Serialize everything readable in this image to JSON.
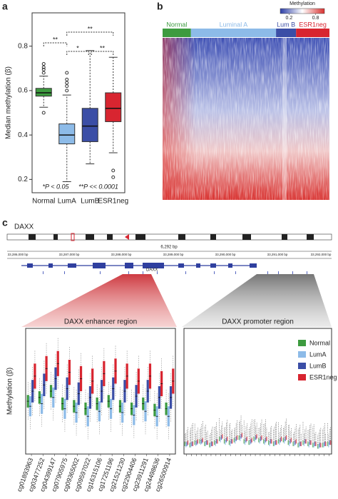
{
  "panels": {
    "a": "a",
    "b": "b",
    "c": "c"
  },
  "gene_track": {
    "name": "DAXX",
    "length": "6,292 bp",
    "gene_label": "DAXX",
    "coordinates": [
      "33,286,000 bp",
      "33,287,000 bp",
      "33,288,000 bp",
      "33,289,000 bp",
      "33,290,000 bp",
      "33,291,000 bp",
      "33,292,000 bp"
    ]
  },
  "chart_data": [
    {
      "type": "box",
      "ylabel": "Median methylation (β)",
      "categories": [
        "Normal",
        "LumA",
        "LumB",
        "ESR1neg"
      ],
      "colors": [
        "#3d9b3f",
        "#8dbbe8",
        "#3b4ea6",
        "#d82530"
      ],
      "boxes": [
        {
          "whislo": 0.525,
          "q1": 0.575,
          "med": 0.59,
          "q3": 0.61,
          "whishi": 0.665,
          "fliers": [
            0.68,
            0.695,
            0.705,
            0.72,
            0.5
          ]
        },
        {
          "whislo": 0.19,
          "q1": 0.36,
          "med": 0.4,
          "q3": 0.45,
          "whishi": 0.58,
          "fliers": [
            0.6,
            0.62,
            0.635,
            0.65,
            0.68
          ]
        },
        {
          "whislo": 0.27,
          "q1": 0.37,
          "med": 0.44,
          "q3": 0.52,
          "whishi": 0.78,
          "fliers": []
        },
        {
          "whislo": 0.32,
          "q1": 0.46,
          "med": 0.52,
          "q3": 0.59,
          "whishi": 0.75,
          "fliers": [
            0.24,
            0.21
          ]
        }
      ],
      "ylim": [
        0.14,
        0.95
      ],
      "yticks": [
        0.2,
        0.4,
        0.6,
        0.8
      ],
      "significance": [
        "**",
        "**",
        "*",
        "**"
      ],
      "footnotes": [
        "*P < 0.05",
        "**P << 0.0001"
      ]
    },
    {
      "type": "heatmap",
      "groups": [
        "Normal",
        "Luminal A",
        "Lum B",
        "ESR1neg"
      ],
      "group_colors": [
        "#3d9b3f",
        "#8dbbe8",
        "#3b4ea6",
        "#d82530"
      ],
      "colorbar_label": "Methylation",
      "colorbar_lim": [
        0,
        1
      ],
      "colorbar_ticks": [
        0.2,
        0.8
      ]
    },
    {
      "type": "grouped-box",
      "title": "DAXX enhancer region",
      "ylabel": "Methylation (β)",
      "ylim": [
        0,
        1
      ],
      "categories": [
        "cg01893963",
        "cg03477252",
        "cg04399147",
        "cg07905975",
        "cg09365002",
        "cg09597022",
        "cg16315106",
        "cg17251196",
        "cg21521230",
        "cg22904406",
        "cg23911291",
        "cg24498636",
        "cg26500914"
      ],
      "series": [
        {
          "name": "Normal",
          "color": "#3d9b3f",
          "med": [
            0.42,
            0.45,
            0.5,
            0.4,
            0.38,
            0.36,
            0.4,
            0.42,
            0.38,
            0.36,
            0.4,
            0.35,
            0.36
          ],
          "q1": [
            0.37,
            0.4,
            0.45,
            0.35,
            0.33,
            0.31,
            0.35,
            0.37,
            0.33,
            0.31,
            0.35,
            0.3,
            0.31
          ],
          "q3": [
            0.47,
            0.5,
            0.55,
            0.45,
            0.43,
            0.41,
            0.45,
            0.47,
            0.43,
            0.41,
            0.45,
            0.4,
            0.41
          ]
        },
        {
          "name": "LumA",
          "color": "#8dbbe8",
          "med": [
            0.38,
            0.4,
            0.45,
            0.36,
            0.33,
            0.3,
            0.34,
            0.36,
            0.33,
            0.31,
            0.34,
            0.3,
            0.3
          ],
          "q1": [
            0.3,
            0.32,
            0.37,
            0.28,
            0.25,
            0.22,
            0.26,
            0.28,
            0.25,
            0.23,
            0.26,
            0.22,
            0.22
          ],
          "q3": [
            0.46,
            0.48,
            0.53,
            0.44,
            0.41,
            0.38,
            0.42,
            0.44,
            0.41,
            0.39,
            0.42,
            0.38,
            0.38
          ]
        },
        {
          "name": "LumB",
          "color": "#3b4ea6",
          "med": [
            0.5,
            0.55,
            0.6,
            0.52,
            0.48,
            0.45,
            0.5,
            0.52,
            0.5,
            0.46,
            0.5,
            0.45,
            0.45
          ],
          "q1": [
            0.41,
            0.46,
            0.51,
            0.43,
            0.39,
            0.36,
            0.41,
            0.43,
            0.41,
            0.37,
            0.41,
            0.36,
            0.36
          ],
          "q3": [
            0.59,
            0.64,
            0.69,
            0.61,
            0.57,
            0.54,
            0.59,
            0.61,
            0.59,
            0.55,
            0.59,
            0.54,
            0.54
          ]
        },
        {
          "name": "ESR1neg",
          "color": "#d82530",
          "med": [
            0.62,
            0.68,
            0.72,
            0.65,
            0.6,
            0.58,
            0.64,
            0.66,
            0.62,
            0.58,
            0.62,
            0.56,
            0.58
          ],
          "q1": [
            0.52,
            0.58,
            0.62,
            0.55,
            0.5,
            0.48,
            0.54,
            0.56,
            0.52,
            0.48,
            0.52,
            0.46,
            0.48
          ],
          "q3": [
            0.72,
            0.78,
            0.82,
            0.75,
            0.7,
            0.68,
            0.74,
            0.76,
            0.72,
            0.68,
            0.72,
            0.66,
            0.68
          ]
        }
      ]
    },
    {
      "type": "grouped-box",
      "title": "DAXX promoter region",
      "ylim": [
        0,
        1
      ],
      "legend": "upper right",
      "categories": [
        null,
        null,
        null,
        null,
        null,
        null,
        null,
        null,
        null,
        null,
        null,
        null,
        null,
        null,
        null,
        null,
        null,
        null,
        null,
        null,
        null,
        null,
        null,
        null,
        null,
        null,
        null,
        null,
        null,
        null
      ],
      "series": [
        {
          "name": "Normal",
          "color": "#3d9b3f",
          "med": [
            0.08,
            0.07,
            0.09,
            0.1,
            0.08,
            0.07,
            0.09,
            0.12,
            0.1,
            0.09,
            0.11,
            0.13,
            0.1,
            0.09,
            0.12,
            0.11,
            0.1,
            0.09,
            0.08,
            0.1,
            0.11,
            0.09,
            0.08,
            0.07,
            0.09,
            0.08,
            0.07,
            0.06,
            0.07,
            0.08
          ]
        },
        {
          "name": "LumA",
          "color": "#8dbbe8",
          "med": [
            0.07,
            0.07,
            0.08,
            0.09,
            0.08,
            0.07,
            0.08,
            0.11,
            0.09,
            0.08,
            0.1,
            0.12,
            0.09,
            0.09,
            0.11,
            0.1,
            0.09,
            0.08,
            0.08,
            0.09,
            0.1,
            0.08,
            0.08,
            0.07,
            0.08,
            0.07,
            0.07,
            0.06,
            0.07,
            0.07
          ]
        },
        {
          "name": "LumB",
          "color": "#3b4ea6",
          "med": [
            0.08,
            0.08,
            0.09,
            0.1,
            0.09,
            0.08,
            0.1,
            0.13,
            0.11,
            0.1,
            0.12,
            0.14,
            0.11,
            0.1,
            0.13,
            0.12,
            0.11,
            0.1,
            0.09,
            0.11,
            0.12,
            0.1,
            0.09,
            0.08,
            0.1,
            0.09,
            0.08,
            0.07,
            0.08,
            0.09
          ]
        },
        {
          "name": "ESR1neg",
          "color": "#d82530",
          "med": [
            0.09,
            0.08,
            0.1,
            0.11,
            0.09,
            0.08,
            0.1,
            0.14,
            0.12,
            0.1,
            0.13,
            0.15,
            0.12,
            0.11,
            0.14,
            0.13,
            0.12,
            0.1,
            0.09,
            0.12,
            0.13,
            0.11,
            0.1,
            0.08,
            0.1,
            0.09,
            0.08,
            0.07,
            0.08,
            0.09
          ]
        }
      ]
    }
  ]
}
